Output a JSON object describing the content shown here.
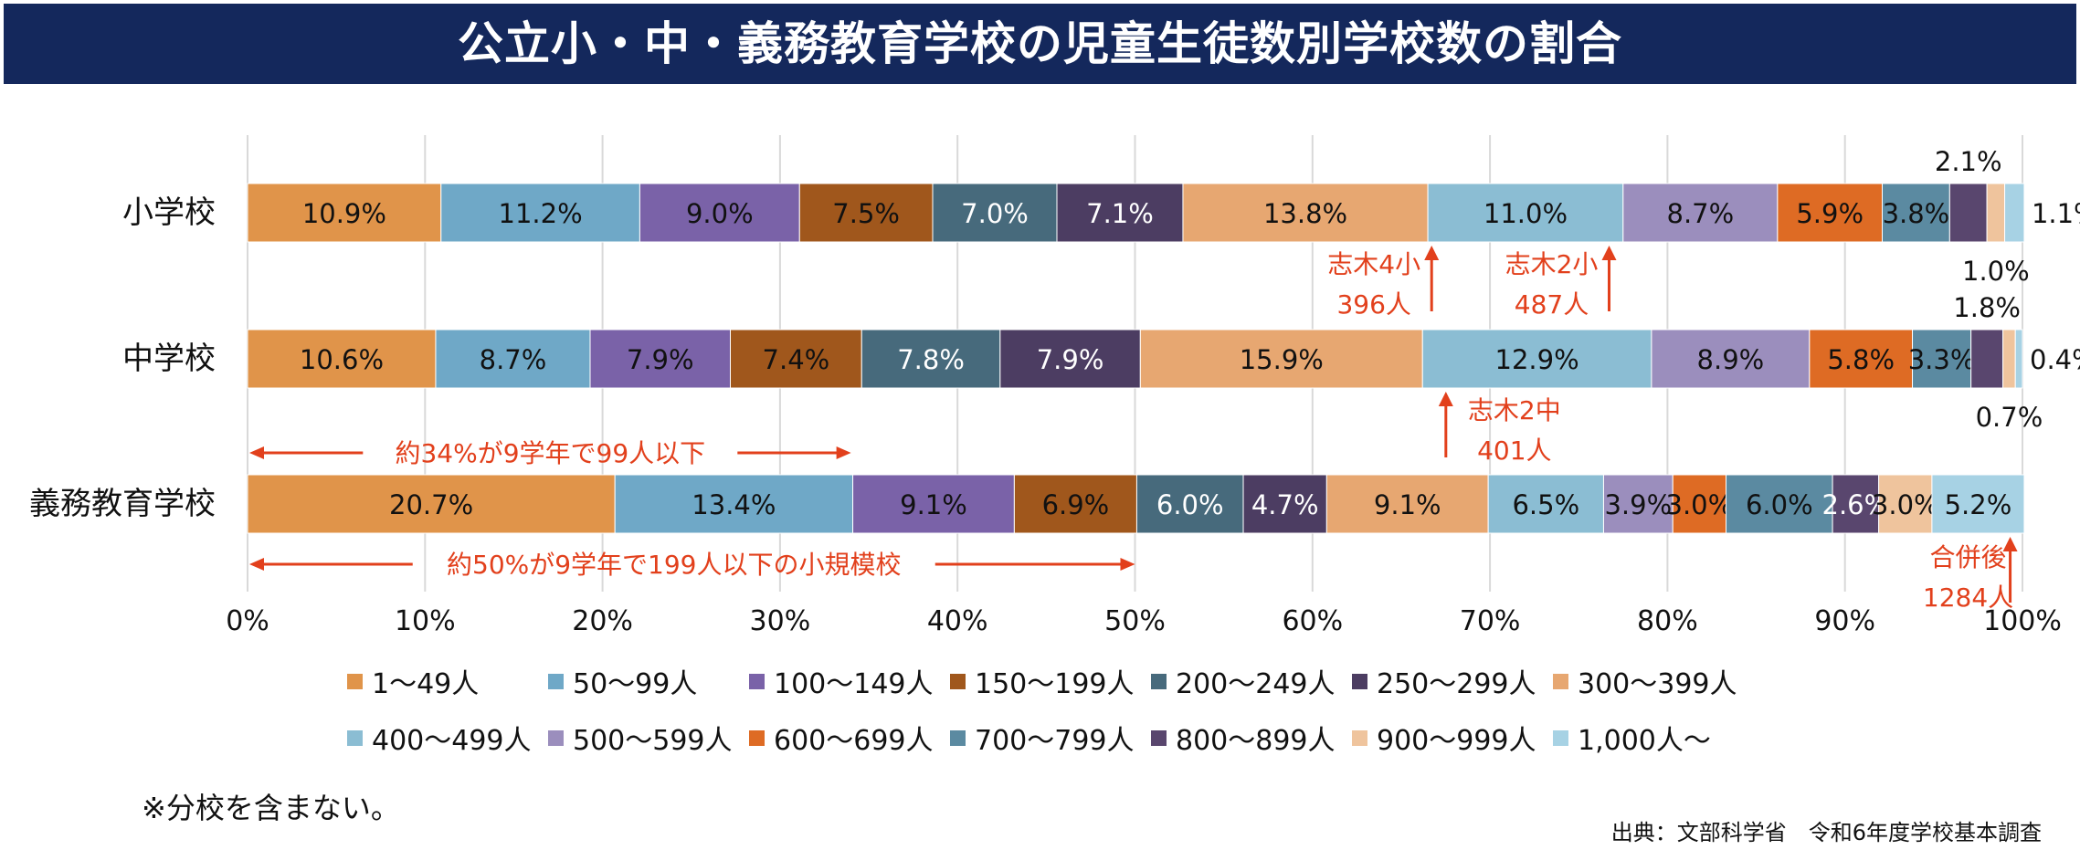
{
  "title": "公立小・中・義務教育学校の児童生徒数別学校数の割合",
  "note": "※分校を含まない。",
  "source": "出典：文部科学省　令和6年度学校基本調査",
  "colors": [
    "#e0944a",
    "#6fa8c7",
    "#7a62a8",
    "#a0571c",
    "#476a7c",
    "#4c3d62",
    "#e7a771",
    "#8bbdd3",
    "#9b8ebd",
    "#de6b24",
    "#5b8aa1",
    "#59466e",
    "#efc49d",
    "#a7d2e4"
  ],
  "chart_data": {
    "type": "bar",
    "orientation": "horizontal",
    "stacked": true,
    "categories": [
      "小学校",
      "中学校",
      "義務教育学校"
    ],
    "series": [
      {
        "name": "1〜49人",
        "values": [
          10.9,
          10.6,
          20.7
        ]
      },
      {
        "name": "50〜99人",
        "values": [
          11.2,
          8.7,
          13.4
        ]
      },
      {
        "name": "100〜149人",
        "values": [
          9.0,
          7.9,
          9.1
        ]
      },
      {
        "name": "150〜199人",
        "values": [
          7.5,
          7.4,
          6.9
        ]
      },
      {
        "name": "200〜249人",
        "values": [
          7.0,
          7.8,
          6.0
        ]
      },
      {
        "name": "250〜299人",
        "values": [
          7.1,
          7.9,
          4.7
        ]
      },
      {
        "name": "300〜399人",
        "values": [
          13.8,
          15.9,
          9.1
        ]
      },
      {
        "name": "400〜499人",
        "values": [
          11.0,
          12.9,
          6.5
        ]
      },
      {
        "name": "500〜599人",
        "values": [
          8.7,
          8.9,
          3.9
        ]
      },
      {
        "name": "600〜699人",
        "values": [
          5.9,
          5.8,
          3.0
        ]
      },
      {
        "name": "700〜799人",
        "values": [
          3.8,
          3.3,
          6.0
        ]
      },
      {
        "name": "800〜899人",
        "values": [
          2.1,
          1.8,
          2.6
        ]
      },
      {
        "name": "900〜999人",
        "values": [
          1.0,
          0.7,
          3.0
        ]
      },
      {
        "name": "1,000人〜",
        "values": [
          1.1,
          0.4,
          5.2
        ]
      }
    ],
    "x_ticks": [
      "0%",
      "10%",
      "20%",
      "30%",
      "40%",
      "50%",
      "60%",
      "70%",
      "80%",
      "90%",
      "100%"
    ],
    "xlim": [
      0,
      100
    ],
    "grid": true,
    "legend_position": "bottom",
    "annotations": [
      {
        "row": 0,
        "x": 66.3,
        "lines": [
          "志木4小",
          "396人"
        ]
      },
      {
        "row": 0,
        "x": 76.3,
        "lines": [
          "志木2小",
          "487人"
        ]
      },
      {
        "row": 1,
        "x": 67.0,
        "lines": [
          "志木2中",
          "401人"
        ]
      },
      {
        "row": 2,
        "x": 99.0,
        "lines": [
          "合併後",
          "1284人"
        ]
      }
    ],
    "ranges": [
      {
        "text": "約34%が9学年で99人以下",
        "from": 0,
        "to": 34
      },
      {
        "text": "約50%が9学年で199人以下の小規模校",
        "from": 0,
        "to": 50
      }
    ]
  }
}
